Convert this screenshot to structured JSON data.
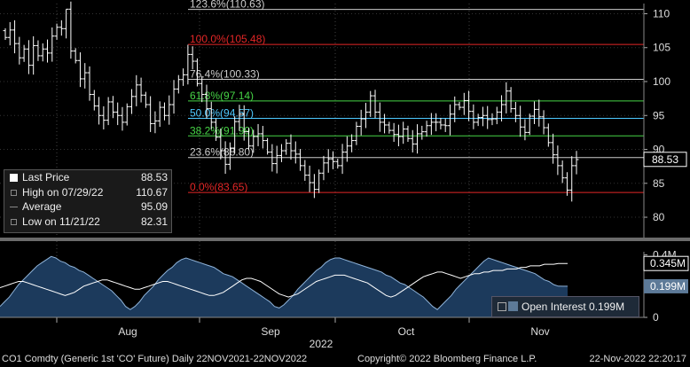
{
  "chart_data": {
    "type": "bar",
    "subtype": "ohlc",
    "months": [
      {
        "label": "Aug",
        "x": 144
      },
      {
        "label": "Sep",
        "x": 305
      },
      {
        "label": "Oct",
        "x": 458
      },
      {
        "label": "Nov",
        "x": 609
      }
    ],
    "year_label": "2022",
    "price_axis": {
      "ylim": [
        77,
        111.5
      ],
      "ticks": [
        80,
        85,
        90,
        95,
        100,
        105,
        110
      ]
    },
    "fib_levels": [
      {
        "label": "123.6%(110.63)",
        "value": 110.63,
        "color": "#cccccc"
      },
      {
        "label": "100.0%(105.48)",
        "value": 105.48,
        "color": "#e32626"
      },
      {
        "label": "76.4%(100.33)",
        "value": 100.33,
        "color": "#cccccc"
      },
      {
        "label": "61.8%(97.14)",
        "value": 97.14,
        "color": "#46d446"
      },
      {
        "label": "50.0%(94.57)",
        "value": 94.57,
        "color": "#4ec9ff"
      },
      {
        "label": "38.2%(91.99)",
        "value": 91.99,
        "color": "#46d446"
      },
      {
        "label": "23.6%(88.80)",
        "value": 88.8,
        "color": "#cccccc"
      },
      {
        "label": "0.0%(83.65)",
        "value": 83.65,
        "color": "#e32626"
      }
    ],
    "last_price_tag": "88.53",
    "price_close": [
      106.5,
      107.6,
      105.6,
      103.5,
      104.8,
      102.4,
      105.3,
      103.8,
      104.8,
      104.2,
      106.7,
      108.0,
      107.8,
      110.67,
      104.5,
      103.1,
      100.4,
      101.3,
      98.1,
      96.4,
      95.0,
      94.3,
      97.0,
      95.5,
      95.0,
      94.0,
      96.3,
      97.8,
      99.5,
      98.0,
      96.6,
      93.8,
      94.2,
      96.2,
      95.0,
      96.6,
      98.9,
      100.3,
      101.0,
      104.0,
      103.0,
      99.7,
      98.1,
      96.0,
      94.0,
      91.8,
      89.8,
      87.8,
      90.2,
      94.1,
      95.2,
      92.6,
      90.5,
      91.9,
      92.3,
      91.3,
      89.6,
      87.9,
      89.1,
      89.8,
      90.9,
      89.8,
      89.3,
      87.6,
      86.2,
      85.1,
      84.1,
      86.5,
      88.0,
      88.6,
      88.2,
      87.6,
      89.6,
      90.5,
      91.3,
      93.4,
      94.5,
      95.5,
      97.9,
      95.5,
      94.0,
      93.6,
      92.8,
      92.2,
      91.9,
      93.0,
      91.6,
      90.8,
      92.3,
      92.6,
      93.5,
      94.0,
      94.0,
      93.6,
      93.5,
      95.2,
      96.6,
      96.2,
      97.2,
      95.6,
      94.0,
      94.7,
      95.0,
      94.4,
      94.5,
      95.5,
      96.6,
      98.6,
      96.0,
      95.0,
      93.3,
      92.5,
      94.9,
      95.9,
      94.8,
      93.2,
      91.0,
      89.2,
      87.6,
      85.8,
      84.0,
      87.6,
      88.5
    ],
    "oi_axis": {
      "ylim": [
        0,
        0.42
      ],
      "ticks": [
        {
          "label": "0",
          "value": 0
        },
        {
          "label": "0.2M",
          "value": 0.2
        },
        {
          "label": "0.4M",
          "value": 0.4
        }
      ]
    },
    "open_interest": [
      0.07,
      0.1,
      0.13,
      0.17,
      0.21,
      0.24,
      0.27,
      0.3,
      0.33,
      0.35,
      0.37,
      0.39,
      0.38,
      0.36,
      0.35,
      0.33,
      0.32,
      0.3,
      0.29,
      0.27,
      0.25,
      0.23,
      0.21,
      0.19,
      0.17,
      0.14,
      0.11,
      0.07,
      0.05,
      0.07,
      0.1,
      0.14,
      0.17,
      0.2,
      0.24,
      0.27,
      0.3,
      0.32,
      0.35,
      0.37,
      0.38,
      0.37,
      0.36,
      0.35,
      0.34,
      0.33,
      0.32,
      0.3,
      0.28,
      0.27,
      0.26,
      0.24,
      0.22,
      0.2,
      0.18,
      0.16,
      0.14,
      0.12,
      0.1,
      0.07,
      0.06,
      0.08,
      0.11,
      0.14,
      0.18,
      0.21,
      0.24,
      0.27,
      0.3,
      0.32,
      0.35,
      0.37,
      0.38,
      0.38,
      0.37,
      0.36,
      0.35,
      0.34,
      0.33,
      0.32,
      0.31,
      0.3,
      0.29,
      0.27,
      0.26,
      0.24,
      0.22,
      0.21,
      0.19,
      0.17,
      0.15,
      0.13,
      0.1,
      0.07,
      0.05,
      0.08,
      0.11,
      0.14,
      0.18,
      0.21,
      0.24,
      0.27,
      0.3,
      0.33,
      0.36,
      0.38,
      0.37,
      0.36,
      0.35,
      0.34,
      0.33,
      0.32,
      0.31,
      0.3,
      0.29,
      0.28,
      0.26,
      0.24,
      0.23,
      0.21,
      0.2,
      0.199,
      0.199
    ],
    "volume_avg": [
      0.19,
      0.2,
      0.21,
      0.22,
      0.23,
      0.23,
      0.22,
      0.21,
      0.2,
      0.19,
      0.18,
      0.17,
      0.16,
      0.15,
      0.14,
      0.15,
      0.16,
      0.18,
      0.2,
      0.21,
      0.22,
      0.23,
      0.24,
      0.24,
      0.23,
      0.22,
      0.21,
      0.2,
      0.19,
      0.18,
      0.18,
      0.19,
      0.2,
      0.21,
      0.22,
      0.23,
      0.23,
      0.22,
      0.21,
      0.2,
      0.19,
      0.18,
      0.17,
      0.16,
      0.15,
      0.14,
      0.14,
      0.15,
      0.16,
      0.18,
      0.2,
      0.22,
      0.24,
      0.25,
      0.25,
      0.24,
      0.23,
      0.21,
      0.19,
      0.17,
      0.15,
      0.14,
      0.13,
      0.14,
      0.15,
      0.17,
      0.19,
      0.21,
      0.23,
      0.24,
      0.25,
      0.26,
      0.27,
      0.27,
      0.27,
      0.26,
      0.25,
      0.24,
      0.23,
      0.22,
      0.2,
      0.18,
      0.16,
      0.14,
      0.13,
      0.14,
      0.16,
      0.18,
      0.2,
      0.22,
      0.24,
      0.26,
      0.27,
      0.28,
      0.29,
      0.29,
      0.28,
      0.27,
      0.26,
      0.25,
      0.26,
      0.27,
      0.28,
      0.28,
      0.29,
      0.29,
      0.3,
      0.3,
      0.3,
      0.31,
      0.31,
      0.31,
      0.32,
      0.32,
      0.33,
      0.33,
      0.33,
      0.34,
      0.34,
      0.34,
      0.345,
      0.345,
      0.345
    ],
    "oi_tags": [
      {
        "label": "0.345M",
        "value": 0.345,
        "style": "outline"
      },
      {
        "label": "0.199M",
        "value": 0.199,
        "style": "filled"
      }
    ]
  },
  "legend": {
    "rows": [
      {
        "label": "Last Price",
        "value": "88.53"
      },
      {
        "label": "High on 07/29/22",
        "value": "110.67"
      },
      {
        "label": "Average",
        "value": "95.09"
      },
      {
        "label": "Low on 11/21/22",
        "value": "82.31"
      }
    ]
  },
  "oi_legend": {
    "label": "Open Interest 0.199M"
  },
  "footer": {
    "left": "CO1 Comdty (Generic 1st 'CO' Future)  Daily 22NOV2021-22NOV2022",
    "center": "Copyright© 2022 Bloomberg Finance L.P.",
    "right": "22-Nov-2022 22:20:17"
  },
  "colors": {
    "background": "#000000",
    "bar": "#ffffff",
    "oi_fill": "#1c3a5c",
    "oi_line": "#8fb3d9",
    "volume_line": "#ffffff",
    "separator": "#6b6b6b"
  }
}
